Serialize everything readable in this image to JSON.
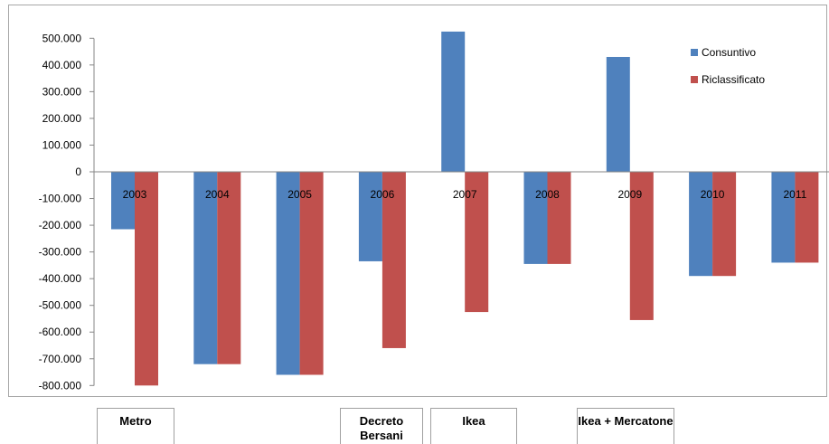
{
  "chart_data": {
    "type": "bar",
    "categories": [
      "2003",
      "2004",
      "2005",
      "2006",
      "2007",
      "2008",
      "2009",
      "2010",
      "2011"
    ],
    "series": [
      {
        "name": "Consuntivo",
        "color": "#4f81bd",
        "values": [
          -215000,
          -720000,
          -760000,
          -335000,
          525000,
          -345000,
          430000,
          -390000,
          -340000
        ]
      },
      {
        "name": "Riclassificato",
        "color": "#c0504d",
        "values": [
          -800000,
          -720000,
          -760000,
          -660000,
          -525000,
          -345000,
          -555000,
          -390000,
          -340000
        ]
      }
    ],
    "ylim": [
      -800000,
      500000
    ],
    "yticks": [
      "500.000",
      "400.000",
      "300.000",
      "200.000",
      "100.000",
      "0",
      "-100.000",
      "-200.000",
      "-300.000",
      "-400.000",
      "-500.000",
      "-600.000",
      "-700.000",
      "-800.000"
    ],
    "ytick_values": [
      500000,
      400000,
      300000,
      200000,
      100000,
      0,
      -100000,
      -200000,
      -300000,
      -400000,
      -500000,
      -600000,
      -700000,
      -800000
    ],
    "legend_position": "top-right",
    "grid": false,
    "title": "",
    "xlabel": "",
    "ylabel": ""
  },
  "notes": [
    {
      "label": "Metro"
    },
    {
      "label": "Decreto Bersani"
    },
    {
      "label": "Ikea"
    },
    {
      "label": "Ikea + Mercatone"
    }
  ]
}
